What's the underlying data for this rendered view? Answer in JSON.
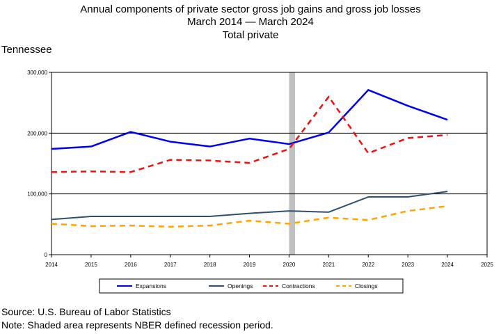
{
  "header": {
    "title_line1": "Annual components of private sector gross job gains and gross job losses",
    "title_line2": "March 2014 — March 2024",
    "title_line3": "Total private",
    "region": "Tennessee"
  },
  "footer": {
    "source": "Source: U.S. Bureau of Labor Statistics",
    "note": "Note: Shaded area represents NBER defined recession period."
  },
  "chart_data": {
    "type": "line",
    "x": [
      2014,
      2015,
      2016,
      2017,
      2018,
      2019,
      2020,
      2021,
      2022,
      2023,
      2024
    ],
    "xlim": [
      2014,
      2025
    ],
    "ylim": [
      0,
      300000
    ],
    "xticks": [
      "2014",
      "2015",
      "2016",
      "2017",
      "2018",
      "2019",
      "2020",
      "2021",
      "2022",
      "2023",
      "2024",
      "2025"
    ],
    "yticks": [
      "0",
      "100,000",
      "200,000",
      "300,000"
    ],
    "ytick_values": [
      0,
      100000,
      200000,
      300000
    ],
    "gridlines_y": [
      100000,
      200000
    ],
    "recession": [
      2020.0,
      2020.15
    ],
    "series": [
      {
        "name": "Expansions",
        "color": "#0000ee",
        "dash": "solid",
        "values": [
          174000,
          178000,
          202000,
          186000,
          178000,
          191000,
          182000,
          201000,
          271000,
          245000,
          222000
        ]
      },
      {
        "name": "Openings",
        "color": "#2f4f6f",
        "dash": "solid",
        "values": [
          58000,
          63000,
          63000,
          63000,
          63000,
          68000,
          72000,
          70000,
          95000,
          95000,
          104000
        ]
      },
      {
        "name": "Contractions",
        "color": "#ee1111",
        "dash": "dashed",
        "values": [
          136000,
          137000,
          136000,
          156000,
          155000,
          151000,
          174000,
          260000,
          167000,
          192000,
          197000
        ]
      },
      {
        "name": "Closings",
        "color": "#ffa500",
        "dash": "dashed",
        "values": [
          51000,
          47000,
          48000,
          46000,
          48000,
          56000,
          51000,
          61000,
          57000,
          72000,
          80000
        ]
      }
    ],
    "legend_position": "bottom"
  }
}
